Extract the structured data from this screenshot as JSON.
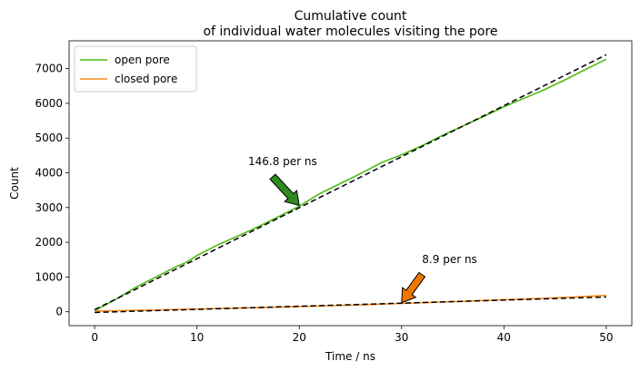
{
  "chart_data": {
    "type": "line",
    "title_line1": "Cumulative count",
    "title_line2": "of individual water molecules visiting the pore",
    "xlabel": "Time / ns",
    "ylabel": "Count",
    "xlim": [
      -2.5,
      52.5
    ],
    "ylim": [
      -400,
      7800
    ],
    "xticks": [
      0,
      10,
      20,
      30,
      40,
      50
    ],
    "yticks": [
      0,
      1000,
      2000,
      3000,
      4000,
      5000,
      6000,
      7000
    ],
    "legend_placement": "upper-left",
    "series": [
      {
        "name": "open pore",
        "color": "#4cbb17",
        "style": "solid",
        "x": [
          0,
          2,
          4,
          6,
          8,
          9,
          10,
          12,
          14,
          16,
          18,
          20,
          22,
          24,
          26,
          28,
          30,
          32,
          34,
          36,
          38,
          40,
          42,
          44,
          46,
          48,
          50
        ],
        "y": [
          30,
          350,
          700,
          1000,
          1300,
          1430,
          1620,
          1920,
          2180,
          2450,
          2740,
          3040,
          3400,
          3690,
          3980,
          4290,
          4520,
          4780,
          5080,
          5350,
          5620,
          5900,
          6150,
          6400,
          6680,
          6980,
          7270
        ]
      },
      {
        "name": "closed pore",
        "color": "#ff8c1a",
        "style": "solid",
        "x": [
          0,
          5,
          10,
          15,
          20,
          25,
          30,
          35,
          40,
          45,
          50
        ],
        "y": [
          20,
          45,
          80,
          110,
          150,
          190,
          240,
          290,
          345,
          400,
          470
        ]
      },
      {
        "name": "",
        "color": "#000000",
        "style": "dashed",
        "x": [
          0,
          50
        ],
        "y": [
          60,
          7400
        ]
      },
      {
        "name": "",
        "color": "#000000",
        "style": "dashed",
        "x": [
          0,
          50
        ],
        "y": [
          -20,
          425
        ]
      }
    ],
    "annotations": [
      {
        "text": "146.8 per ns",
        "text_x": 15,
        "text_y": 4150,
        "point_x": 20,
        "point_y": 3060,
        "color": "#2e8b1e"
      },
      {
        "text": "8.9 per ns",
        "text_x": 32,
        "text_y": 1330,
        "point_x": 30,
        "point_y": 260,
        "color": "#f07800"
      }
    ]
  }
}
